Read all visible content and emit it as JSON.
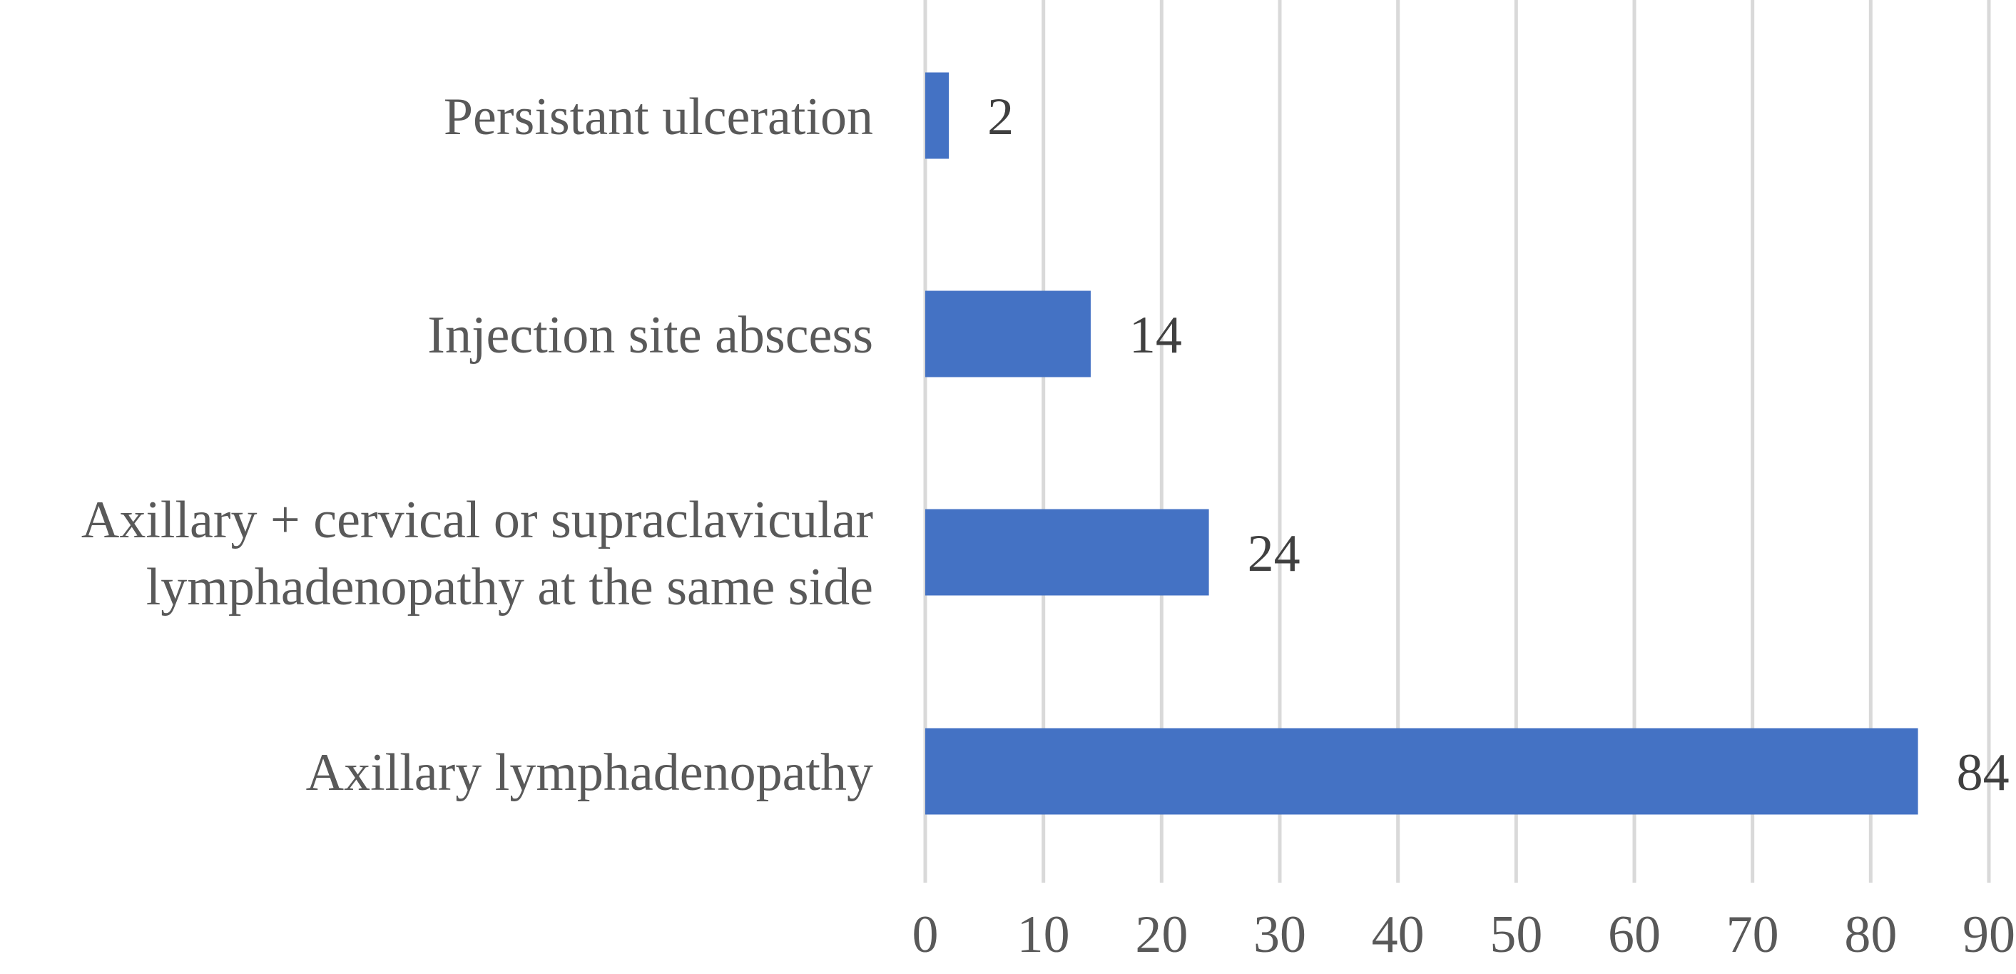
{
  "chart_data": {
    "type": "bar",
    "orientation": "horizontal",
    "title": "",
    "xlabel": "",
    "ylabel": "",
    "categories": [
      "Persistant ulceration",
      "Injection site abscess",
      "Axillary + cervical or supraclavicular lymphadenopathy at the same side",
      "Axillary lymphadenopathy"
    ],
    "category_lines": [
      [
        "Persistant ulceration"
      ],
      [
        "Injection site abscess"
      ],
      [
        "Axillary + cervical or supraclavicular",
        "lymphadenopathy at the same side"
      ],
      [
        "Axillary lymphadenopathy"
      ]
    ],
    "values": [
      2,
      14,
      24,
      84
    ],
    "data_labels": [
      "2",
      "14",
      "24",
      "84"
    ],
    "xlim": [
      0,
      90
    ],
    "x_ticks": [
      0,
      10,
      20,
      30,
      40,
      50,
      60,
      70,
      80,
      90
    ],
    "x_tick_labels": [
      "0",
      "10",
      "20",
      "30",
      "40",
      "50",
      "60",
      "70",
      "80",
      "90"
    ],
    "grid": true,
    "legend": "none",
    "bar_color": "#4472C4",
    "grid_color": "#D9D9D9",
    "label_color": "#595959",
    "data_label_color": "#404040"
  }
}
